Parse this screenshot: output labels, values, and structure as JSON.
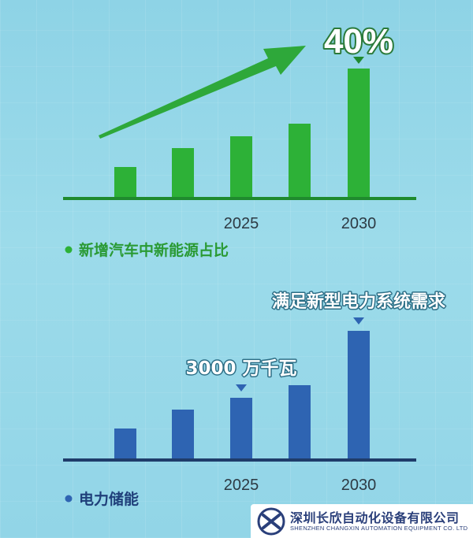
{
  "chart_data": [
    {
      "type": "bar",
      "categories": [
        "",
        "",
        "2025",
        "",
        "2030"
      ],
      "values": [
        40,
        64,
        79,
        95,
        165
      ],
      "ylim": [
        0,
        185
      ],
      "color": "#2db137",
      "caption": "新增汽车中新能源占比",
      "callout": "40%",
      "callout_index": 4
    },
    {
      "type": "bar",
      "categories": [
        "",
        "",
        "2025",
        "",
        "2030"
      ],
      "values": [
        40,
        64,
        79,
        95,
        164
      ],
      "ylim": [
        0,
        185
      ],
      "color": "#2e64b2",
      "caption": "电力储能",
      "callouts": [
        {
          "index": 2,
          "text": "3000 万千瓦"
        },
        {
          "index": 4,
          "text": "满足新型电力系统需求"
        }
      ]
    }
  ],
  "company": {
    "name_cn": "深圳长欣自动化设备有限公司",
    "name_en": "SHENZHEN CHANGXIN AUTOMATION EQUIPMENT CO. LTD"
  },
  "colors": {
    "green": "#2db137",
    "blue": "#2e64b2",
    "axis_green": "#1f8a2e",
    "axis_blue": "#1f3c6a"
  }
}
